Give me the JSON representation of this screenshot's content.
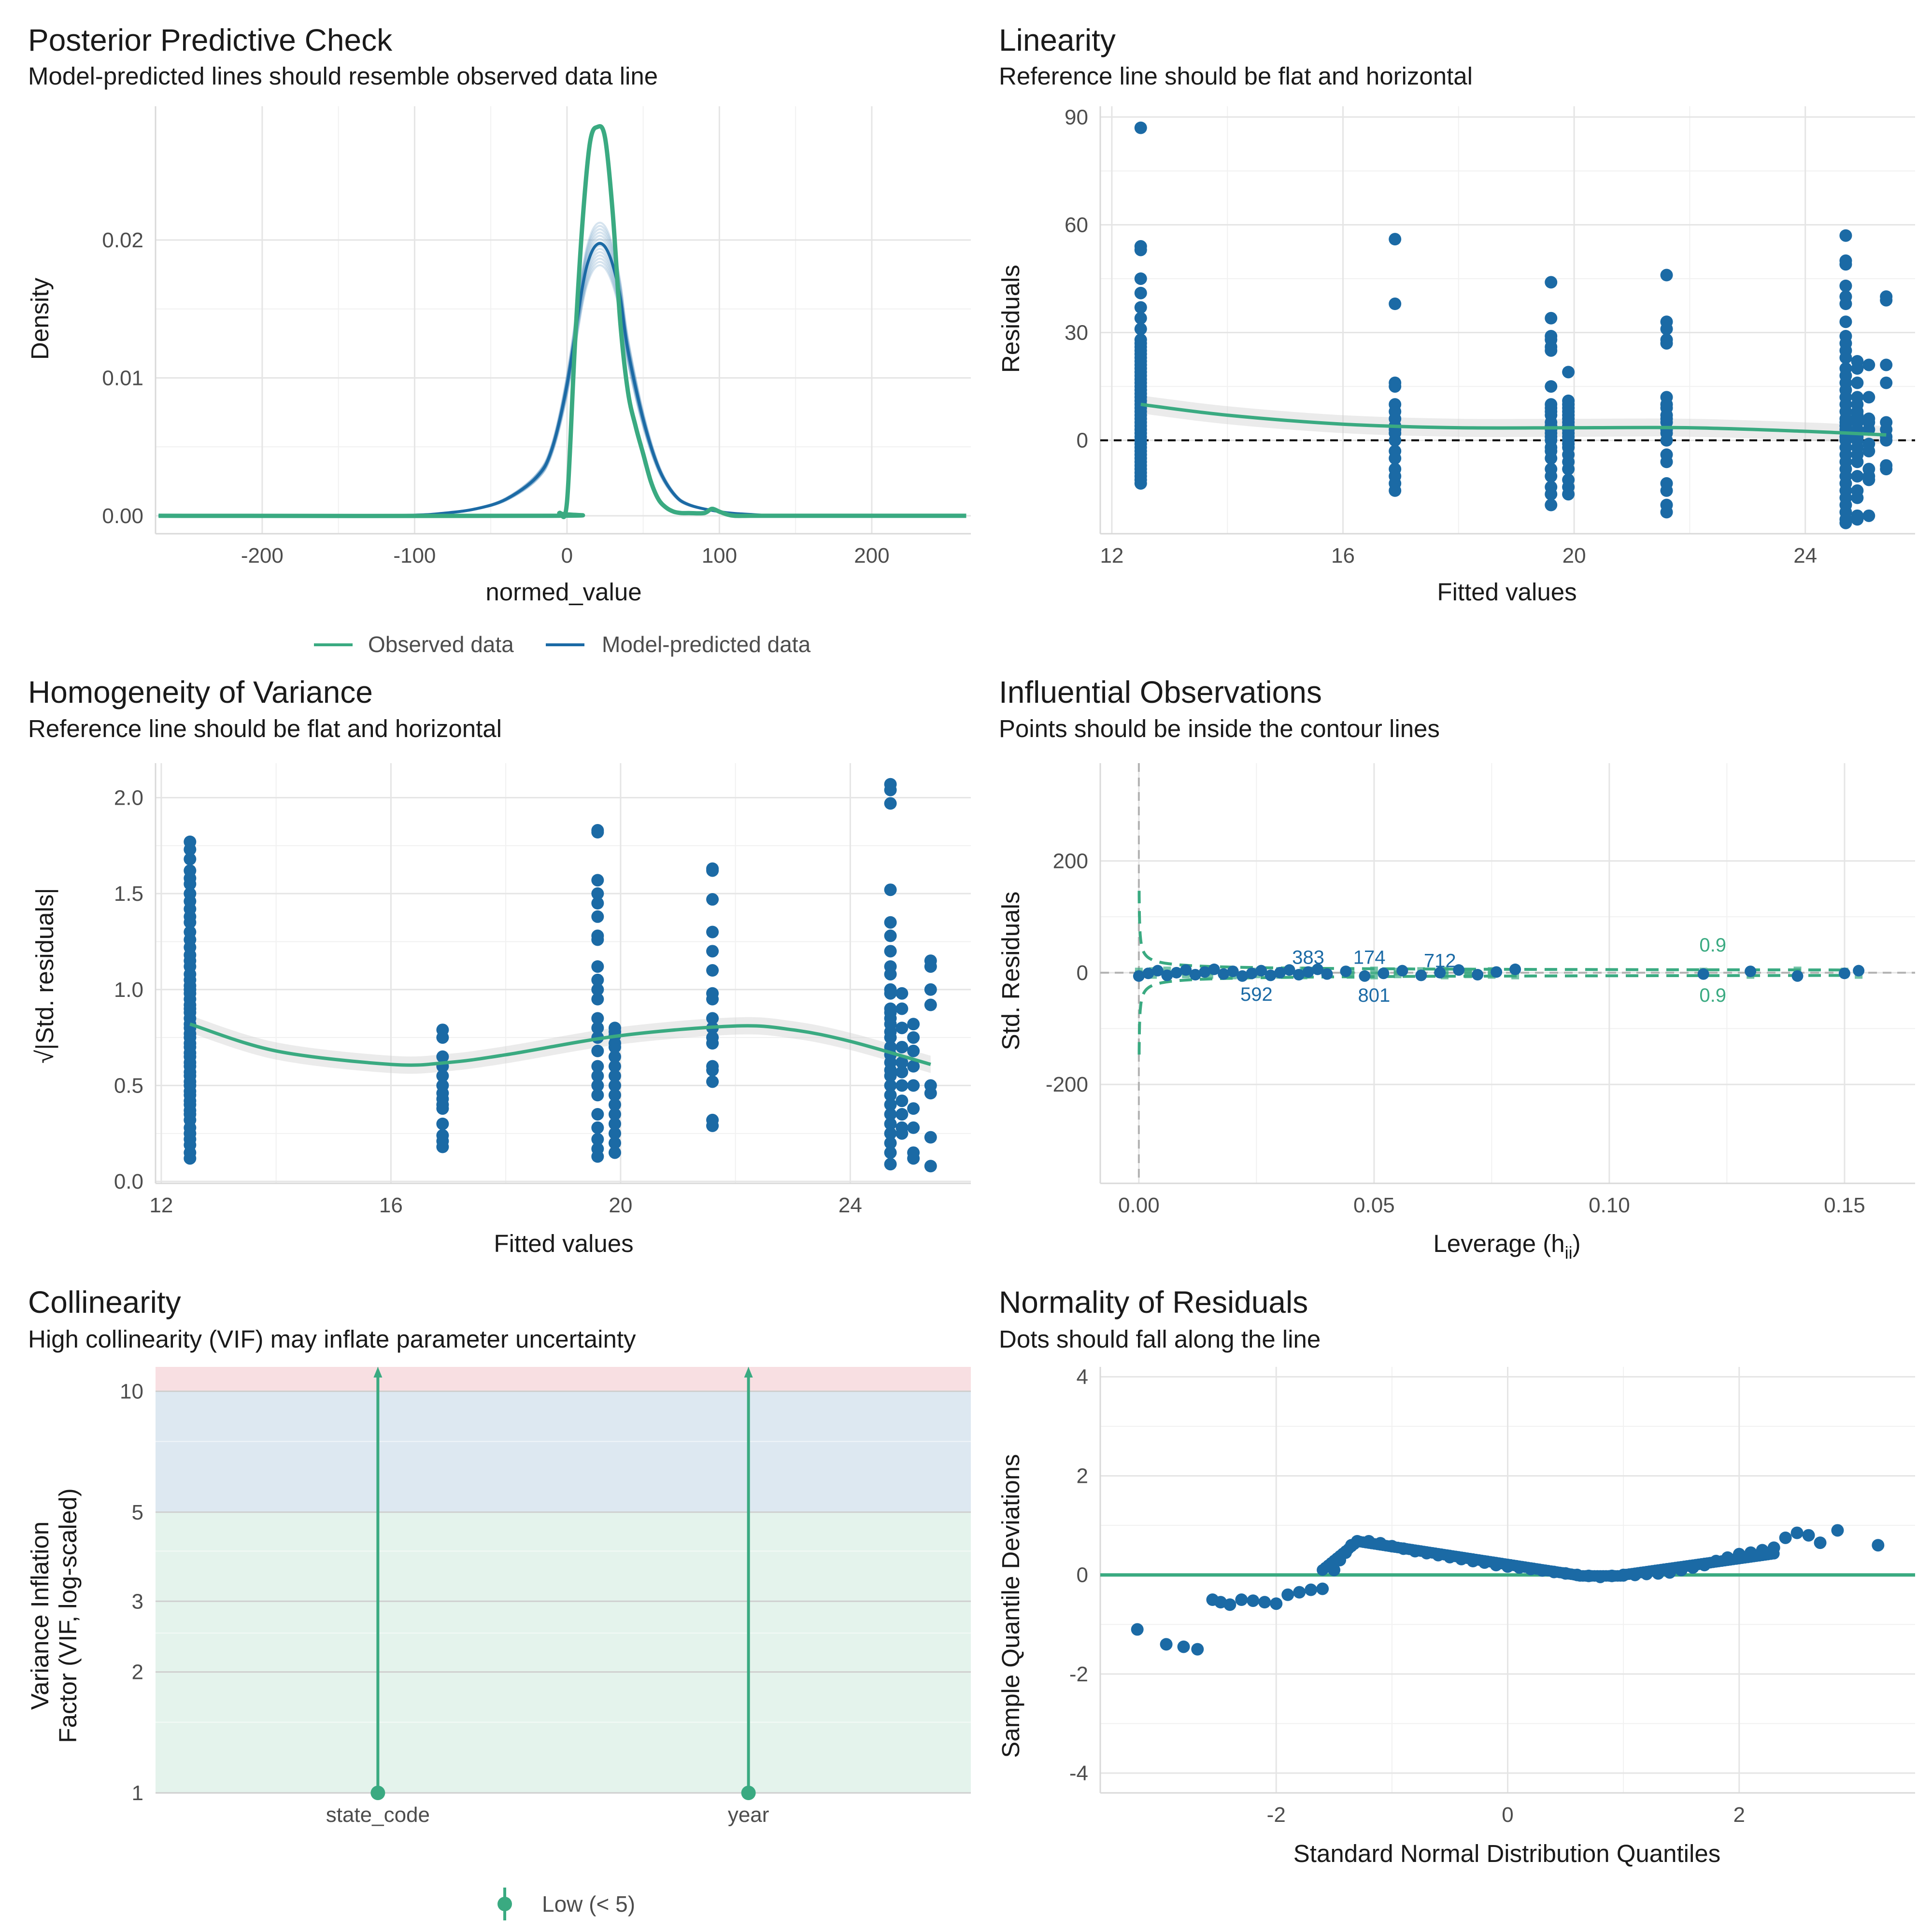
{
  "colors": {
    "green": "#3aaa81",
    "blue": "#1b6aa5",
    "ribbon": "#cccccc"
  },
  "chart_data": [
    {
      "id": "ppc",
      "type": "line",
      "title": "Posterior Predictive Check",
      "subtitle": "Model-predicted lines should resemble observed data line",
      "xlabel": "normed_value",
      "ylabel": "Density",
      "xlim": [
        -270,
        265
      ],
      "ylim": [
        -0.0013,
        0.0297
      ],
      "xticks": [
        -200,
        -100,
        0,
        100,
        200
      ],
      "yticks": [
        0,
        0.01,
        0.02
      ],
      "ytick_labels": [
        "0.00",
        "0.01",
        "0.02"
      ],
      "legend": [
        "Observed data",
        "Model-predicted data"
      ],
      "series": [
        {
          "name": "Observed data",
          "x": [
            -268,
            -10,
            -5,
            0,
            5,
            10,
            15,
            20,
            25,
            30,
            35,
            40,
            45,
            50,
            55,
            60,
            65,
            70,
            75,
            80,
            90,
            95,
            100,
            105,
            110,
            120,
            140,
            262
          ],
          "y": [
            0,
            0,
            0.0002,
            0.001,
            0.012,
            0.021,
            0.027,
            0.0282,
            0.0274,
            0.022,
            0.014,
            0.009,
            0.0065,
            0.0045,
            0.0025,
            0.0012,
            0.0006,
            0.0003,
            0.0002,
            0.0002,
            0.0002,
            0.0005,
            0.0003,
            0.0001,
            0,
            0,
            0,
            0
          ]
        },
        {
          "name": "Model-predicted data",
          "x": [
            -268,
            -150,
            -100,
            -80,
            -60,
            -40,
            -20,
            -10,
            0,
            10,
            15,
            20,
            25,
            30,
            35,
            40,
            50,
            60,
            70,
            80,
            100,
            120,
            150,
            262
          ],
          "y": [
            0,
            0,
            5e-05,
            0.0002,
            0.0005,
            0.0012,
            0.0028,
            0.0048,
            0.0095,
            0.0165,
            0.0188,
            0.0197,
            0.0195,
            0.0182,
            0.0158,
            0.012,
            0.007,
            0.0035,
            0.0016,
            0.0008,
            0.0003,
            0.0001,
            0,
            0
          ]
        }
      ]
    },
    {
      "id": "lin",
      "type": "scatter",
      "title": "Linearity",
      "subtitle": "Reference line should be flat and horizontal",
      "xlabel": "Fitted values",
      "ylabel": "Residuals",
      "xlim": [
        11.8,
        25.9
      ],
      "ylim": [
        -26,
        93
      ],
      "xticks": [
        12,
        16,
        20,
        24
      ],
      "yticks": [
        0,
        30,
        60,
        90
      ],
      "groups": [
        {
          "x": 12.5,
          "y": [
            87,
            54,
            53,
            45,
            41,
            37,
            34,
            31,
            28,
            27,
            26,
            25,
            24,
            23,
            22,
            21,
            20,
            19,
            18,
            17,
            16,
            15,
            14,
            13,
            12,
            11,
            10,
            9,
            8,
            7,
            6,
            5,
            4,
            3,
            2,
            1,
            0,
            -1,
            -2,
            -3,
            -4,
            -5,
            -6,
            -7,
            -8,
            -9,
            -10,
            -11,
            -12
          ]
        },
        {
          "x": 16.9,
          "y": [
            56,
            38,
            16,
            15,
            10,
            8,
            6,
            4,
            3,
            2,
            0,
            -3,
            -5,
            -8,
            -10,
            -12,
            -14
          ]
        },
        {
          "x": 19.6,
          "y": [
            44,
            34,
            29,
            28,
            26,
            25,
            15,
            10,
            9,
            8,
            7,
            5,
            4,
            3,
            2,
            1,
            0,
            -2,
            -3,
            -5,
            -8,
            -10,
            -13,
            -15,
            -18
          ]
        },
        {
          "x": 19.9,
          "y": [
            19,
            11,
            10,
            9,
            8,
            7,
            6,
            5,
            4,
            3,
            2,
            1,
            0,
            -1,
            -2,
            -4,
            -6,
            -8,
            -11,
            -13,
            -15
          ]
        },
        {
          "x": 21.6,
          "y": [
            46,
            33,
            31,
            28,
            27,
            12,
            10,
            9,
            7,
            6,
            5,
            3,
            2,
            0,
            -4,
            -6,
            -12,
            -14,
            -18,
            -20
          ]
        },
        {
          "x": 24.7,
          "y": [
            57,
            50,
            49,
            43,
            40,
            38,
            33,
            29,
            27,
            25,
            23,
            20,
            18,
            16,
            14,
            12,
            10,
            8,
            6,
            5,
            4,
            3,
            2,
            1,
            0,
            -2,
            -4,
            -6,
            -8,
            -10,
            -12,
            -14,
            -16,
            -18,
            -20,
            -22,
            -23
          ]
        },
        {
          "x": 24.9,
          "y": [
            22,
            20,
            16,
            12,
            10,
            8,
            7,
            6,
            5,
            3,
            1,
            0,
            -2,
            -4,
            -6,
            -10,
            -14,
            -16,
            -21,
            -22
          ]
        },
        {
          "x": 25.1,
          "y": [
            21,
            12,
            6,
            5,
            3,
            -1,
            -3,
            -8,
            -10,
            -11,
            -21
          ]
        },
        {
          "x": 25.4,
          "y": [
            40,
            39,
            21,
            16,
            5,
            3,
            1,
            0,
            -7,
            -8
          ]
        }
      ],
      "trend": {
        "x": [
          12.5,
          14,
          16,
          18,
          20,
          22,
          24,
          25.4
        ],
        "y": [
          10,
          7,
          4.5,
          3.5,
          3.5,
          3.5,
          2.5,
          1.5
        ]
      },
      "refline": 0
    },
    {
      "id": "hom",
      "type": "scatter",
      "title": "Homogeneity of Variance",
      "subtitle": "Reference line should be flat and horizontal",
      "xlabel": "Fitted values",
      "ylabel": "√|Std. residuals|",
      "xlim": [
        11.9,
        26.1
      ],
      "ylim": [
        -0.01,
        2.18
      ],
      "xticks": [
        12,
        16,
        20,
        24
      ],
      "yticks": [
        0,
        0.5,
        1,
        1.5,
        2
      ],
      "ytick_labels": [
        "0.0",
        "0.5",
        "1.0",
        "1.5",
        "2.0"
      ],
      "groups": [
        {
          "x": 12.5,
          "y": [
            1.77,
            1.73,
            1.68,
            1.62,
            1.58,
            1.55,
            1.5,
            1.46,
            1.42,
            1.38,
            1.35,
            1.3,
            1.26,
            1.22,
            1.18,
            1.15,
            1.12,
            1.08,
            1.05,
            1.02,
            1.0,
            0.98,
            0.95,
            0.92,
            0.9,
            0.88,
            0.85,
            0.82,
            0.8,
            0.77,
            0.75,
            0.72,
            0.7,
            0.67,
            0.65,
            0.62,
            0.6,
            0.57,
            0.55,
            0.52,
            0.5,
            0.47,
            0.45,
            0.42,
            0.4,
            0.37,
            0.35,
            0.32,
            0.28,
            0.25,
            0.22,
            0.19,
            0.15,
            0.12
          ]
        },
        {
          "x": 16.9,
          "y": [
            0.79,
            0.75,
            0.65,
            0.6,
            0.55,
            0.5,
            0.46,
            0.43,
            0.4,
            0.38,
            0.3,
            0.24,
            0.21,
            0.18
          ]
        },
        {
          "x": 19.6,
          "y": [
            1.83,
            1.82,
            1.57,
            1.5,
            1.45,
            1.38,
            1.28,
            1.26,
            1.12,
            1.05,
            1.0,
            0.95,
            0.85,
            0.8,
            0.75,
            0.68,
            0.6,
            0.55,
            0.5,
            0.45,
            0.35,
            0.28,
            0.22,
            0.17,
            0.13
          ]
        },
        {
          "x": 19.9,
          "y": [
            0.8,
            0.78,
            0.76,
            0.72,
            0.7,
            0.65,
            0.6,
            0.55,
            0.5,
            0.45,
            0.4,
            0.35,
            0.3,
            0.25,
            0.2,
            0.15
          ]
        },
        {
          "x": 21.6,
          "y": [
            1.63,
            1.62,
            1.47,
            1.3,
            1.2,
            1.1,
            0.98,
            0.95,
            0.85,
            0.8,
            0.75,
            0.72,
            0.6,
            0.58,
            0.52,
            0.32,
            0.29
          ]
        },
        {
          "x": 24.7,
          "y": [
            2.07,
            2.04,
            1.97,
            1.52,
            1.35,
            1.28,
            1.2,
            1.12,
            1.08,
            1.0,
            0.98,
            0.9,
            0.88,
            0.85,
            0.82,
            0.78,
            0.75,
            0.7,
            0.66,
            0.62,
            0.58,
            0.55,
            0.5,
            0.45,
            0.4,
            0.35,
            0.3,
            0.25,
            0.2,
            0.15,
            0.09
          ]
        },
        {
          "x": 24.9,
          "y": [
            0.98,
            0.9,
            0.8,
            0.7,
            0.62,
            0.57,
            0.5,
            0.42,
            0.35,
            0.28,
            0.25
          ]
        },
        {
          "x": 25.1,
          "y": [
            0.82,
            0.75,
            0.68,
            0.6,
            0.5,
            0.38,
            0.28,
            0.15,
            0.12
          ]
        },
        {
          "x": 25.4,
          "y": [
            1.15,
            1.12,
            1.0,
            0.92,
            0.5,
            0.46,
            0.23,
            0.08
          ]
        }
      ],
      "trend": {
        "x": [
          12.5,
          14,
          16,
          17,
          18,
          20,
          22,
          23,
          24,
          25.4
        ],
        "y": [
          0.82,
          0.68,
          0.61,
          0.62,
          0.66,
          0.76,
          0.81,
          0.79,
          0.73,
          0.61
        ]
      }
    },
    {
      "id": "inf",
      "type": "scatter",
      "title": "Influential Observations",
      "subtitle": "Points should be inside the contour lines",
      "xlabel": "Leverage (h",
      "xlabel_sub": "ii",
      "xlabel_end": ")",
      "ylabel": "Std. Residuals",
      "xlim": [
        -0.0082,
        0.165
      ],
      "ylim": [
        -377,
        375
      ],
      "xticks": [
        0,
        0.05,
        0.1,
        0.15
      ],
      "xtick_labels": [
        "0.00",
        "0.05",
        "0.10",
        "0.15"
      ],
      "yticks": [
        -200,
        0,
        200
      ],
      "points_x": [
        0.0,
        0.002,
        0.004,
        0.006,
        0.008,
        0.01,
        0.012,
        0.014,
        0.016,
        0.018,
        0.02,
        0.022,
        0.024,
        0.026,
        0.028,
        0.03,
        0.032,
        0.034,
        0.036,
        0.038,
        0.04,
        0.044,
        0.048,
        0.052,
        0.056,
        0.06,
        0.064,
        0.068,
        0.072,
        0.076,
        0.08,
        0.12,
        0.13,
        0.14,
        0.15,
        0.153
      ],
      "labels": [
        {
          "text": "383",
          "x": 0.036,
          "y": 28
        },
        {
          "text": "174",
          "x": 0.049,
          "y": 28
        },
        {
          "text": "712",
          "x": 0.064,
          "y": 22
        },
        {
          "text": "592",
          "x": 0.025,
          "y": -38
        },
        {
          "text": "801",
          "x": 0.05,
          "y": -40
        }
      ],
      "contour_labels": [
        {
          "text": "0.9",
          "x": 0.122,
          "y": 50
        },
        {
          "text": "0.9",
          "x": 0.122,
          "y": -40
        }
      ]
    },
    {
      "id": "col",
      "type": "bar",
      "title": "Collinearity",
      "subtitle": "High collinearity (VIF) may inflate parameter uncertainty",
      "ylabel_lines": [
        "Variance Inflation",
        "Factor (VIF, log-scaled)"
      ],
      "categories": [
        "state_code",
        "year"
      ],
      "values": [
        1,
        1
      ],
      "ylim": [
        1,
        11.5
      ],
      "yticks": [
        1,
        2,
        3,
        5,
        10
      ],
      "legend": [
        "Low (< 5)"
      ]
    },
    {
      "id": "norm",
      "type": "scatter",
      "title": "Normality of Residuals",
      "subtitle": "Dots should fall along the line",
      "xlabel": "Standard Normal Distribution Quantiles",
      "ylabel": "Sample Quantile Deviations",
      "xlim": [
        -3.52,
        3.52
      ],
      "ylim": [
        -4.4,
        4.2
      ],
      "xticks": [
        -2,
        0,
        2
      ],
      "yticks": [
        -4,
        -2,
        0,
        2,
        4
      ],
      "points": [
        [
          -3.2,
          -1.1
        ],
        [
          -2.95,
          -1.4
        ],
        [
          -2.8,
          -1.45
        ],
        [
          -2.68,
          -1.5
        ],
        [
          -2.55,
          -0.5
        ],
        [
          -2.48,
          -0.55
        ],
        [
          -2.4,
          -0.6
        ],
        [
          -2.3,
          -0.5
        ],
        [
          -2.2,
          -0.52
        ],
        [
          -2.1,
          -0.55
        ],
        [
          -2.0,
          -0.58
        ],
        [
          -1.9,
          -0.4
        ],
        [
          -1.8,
          -0.35
        ],
        [
          -1.7,
          -0.3
        ],
        [
          -1.6,
          -0.28
        ],
        [
          -1.5,
          0.1
        ],
        [
          -1.45,
          0.3
        ],
        [
          -1.4,
          0.45
        ],
        [
          -1.35,
          0.6
        ],
        [
          -1.3,
          0.68
        ],
        [
          -1.2,
          0.68
        ],
        [
          -1.1,
          0.64
        ],
        [
          -1.0,
          0.58
        ],
        [
          -0.9,
          0.53
        ],
        [
          -0.8,
          0.48
        ],
        [
          -0.7,
          0.44
        ],
        [
          -0.6,
          0.4
        ],
        [
          -0.5,
          0.36
        ],
        [
          -0.4,
          0.32
        ],
        [
          -0.3,
          0.28
        ],
        [
          -0.2,
          0.25
        ],
        [
          -0.1,
          0.2
        ],
        [
          0.0,
          0.17
        ],
        [
          0.1,
          0.15
        ],
        [
          0.2,
          0.12
        ],
        [
          0.3,
          0.09
        ],
        [
          0.4,
          0.06
        ],
        [
          0.5,
          0.03
        ],
        [
          0.6,
          0.0
        ],
        [
          0.7,
          -0.02
        ],
        [
          0.8,
          -0.04
        ],
        [
          0.9,
          -0.02
        ],
        [
          1.0,
          0.0
        ],
        [
          1.1,
          0.0
        ],
        [
          1.2,
          0.02
        ],
        [
          1.3,
          0.03
        ],
        [
          1.4,
          0.05
        ],
        [
          1.5,
          0.1
        ],
        [
          1.6,
          0.15
        ],
        [
          1.7,
          0.2
        ],
        [
          1.8,
          0.28
        ],
        [
          1.9,
          0.35
        ],
        [
          2.0,
          0.42
        ],
        [
          2.1,
          0.45
        ],
        [
          2.2,
          0.5
        ],
        [
          2.3,
          0.55
        ],
        [
          2.4,
          0.75
        ],
        [
          2.5,
          0.85
        ],
        [
          2.6,
          0.8
        ],
        [
          2.7,
          0.65
        ],
        [
          2.85,
          0.9
        ],
        [
          3.2,
          0.6
        ]
      ],
      "refline": 0
    }
  ]
}
